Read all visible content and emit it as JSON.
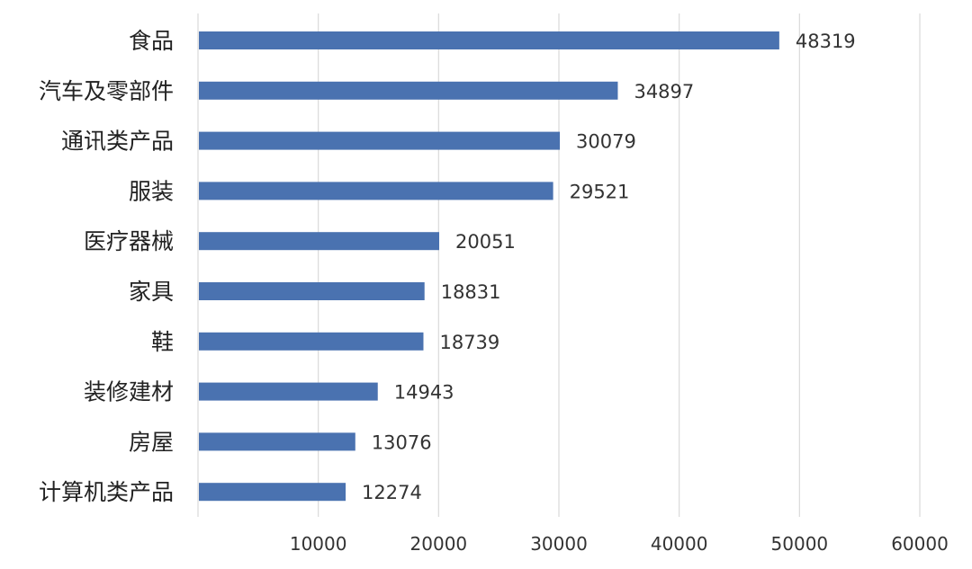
{
  "chart_data": {
    "type": "bar",
    "orientation": "horizontal",
    "categories": [
      "食品",
      "汽车及零部件",
      "通讯类产品",
      "服装",
      "医疗器械",
      "家具",
      "鞋",
      "装修建材",
      "房屋",
      "计算机类产品"
    ],
    "values": [
      48319,
      34897,
      30079,
      29521,
      20051,
      18831,
      18739,
      14943,
      13076,
      12274
    ],
    "x_ticks": [
      "10000",
      "20000",
      "30000",
      "40000",
      "50000",
      "60000"
    ],
    "xlim": [
      0,
      60000
    ],
    "grid": true,
    "legend": "none",
    "data_labels": true,
    "bar_color": "#4a72b0",
    "grid_color": "#d9d9d9"
  }
}
